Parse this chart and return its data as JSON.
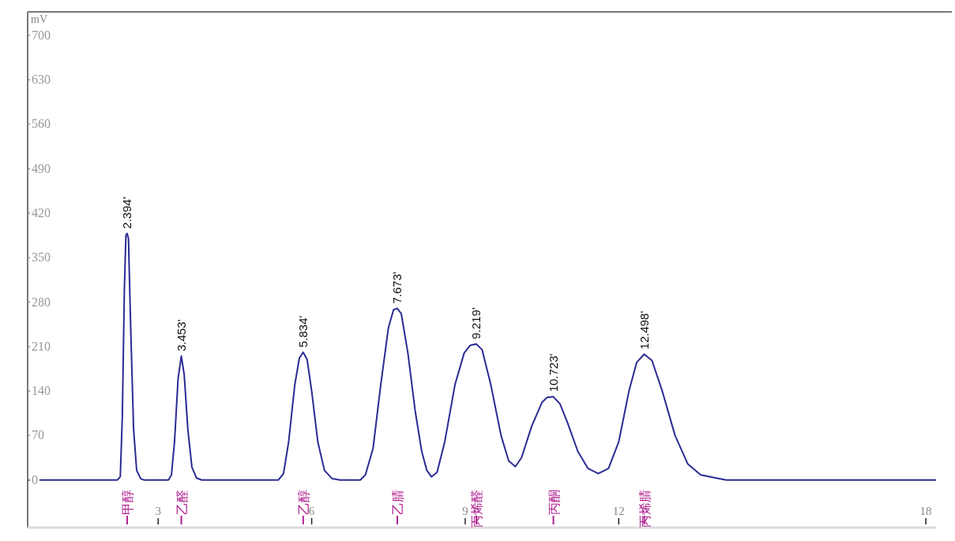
{
  "chart_data": {
    "type": "line",
    "ylabel": "mV",
    "color": "#2b2b93",
    "x": [
      0.45,
      2.2,
      2.26,
      2.3,
      2.34,
      2.37,
      2.394,
      2.42,
      2.46,
      2.52,
      2.58,
      2.66,
      2.72,
      3.2,
      3.26,
      3.32,
      3.39,
      3.453,
      3.51,
      3.58,
      3.66,
      3.75,
      3.85,
      5.35,
      5.45,
      5.55,
      5.67,
      5.76,
      5.834,
      5.91,
      6.0,
      6.12,
      6.25,
      6.4,
      6.55,
      6.95,
      7.05,
      7.2,
      7.35,
      7.5,
      7.6,
      7.673,
      7.75,
      7.88,
      8.02,
      8.15,
      8.25,
      8.34,
      8.45,
      8.6,
      8.8,
      8.98,
      9.1,
      9.219,
      9.33,
      9.5,
      9.7,
      9.85,
      9.98,
      10.1,
      10.3,
      10.5,
      10.6,
      10.723,
      10.85,
      11.0,
      11.2,
      11.4,
      11.6,
      11.8,
      12.0,
      12.2,
      12.35,
      12.498,
      12.65,
      12.85,
      13.1,
      13.35,
      13.6,
      13.9,
      14.1,
      18.2
    ],
    "values": [
      0,
      0,
      5,
      100,
      300,
      385,
      388,
      380,
      250,
      80,
      15,
      2,
      0,
      0,
      8,
      60,
      160,
      195,
      165,
      80,
      20,
      3,
      0,
      0,
      10,
      60,
      150,
      192,
      201,
      190,
      140,
      60,
      15,
      2,
      0,
      0,
      8,
      50,
      150,
      240,
      268,
      270,
      262,
      200,
      110,
      45,
      15,
      5,
      12,
      60,
      150,
      200,
      212,
      214,
      205,
      150,
      70,
      30,
      21,
      35,
      85,
      122,
      130,
      131,
      120,
      90,
      45,
      18,
      10,
      18,
      60,
      140,
      185,
      198,
      188,
      140,
      70,
      25,
      8,
      3,
      0,
      0
    ],
    "xlim": [
      0.45,
      18.2
    ],
    "ylim": [
      -75,
      737
    ],
    "xticks": [
      3,
      6,
      9,
      12,
      18
    ],
    "yticks": [
      0,
      70,
      140,
      210,
      280,
      350,
      420,
      490,
      560,
      630,
      700
    ],
    "annotations": [
      {
        "text": "2.394'",
        "x": 2.394,
        "y": 388
      },
      {
        "text": "3.453'",
        "x": 3.453,
        "y": 195
      },
      {
        "text": "5.834'",
        "x": 5.834,
        "y": 201
      },
      {
        "text": "7.673'",
        "x": 7.673,
        "y": 270
      },
      {
        "text": "9.219'",
        "x": 9.219,
        "y": 214
      },
      {
        "text": "10.723'",
        "x": 10.723,
        "y": 131
      },
      {
        "text": "12.498'",
        "x": 12.498,
        "y": 198
      },
      {
        "text": "甲醇",
        "x": 2.394
      },
      {
        "text": "乙醛",
        "x": 3.453
      },
      {
        "text": "乙醇",
        "x": 5.834
      },
      {
        "text": "乙腈",
        "x": 7.673
      },
      {
        "text": "丙烯醛",
        "x": 9.219
      },
      {
        "text": "丙酮",
        "x": 10.723
      },
      {
        "text": "丙烯腈",
        "x": 12.498
      }
    ]
  }
}
